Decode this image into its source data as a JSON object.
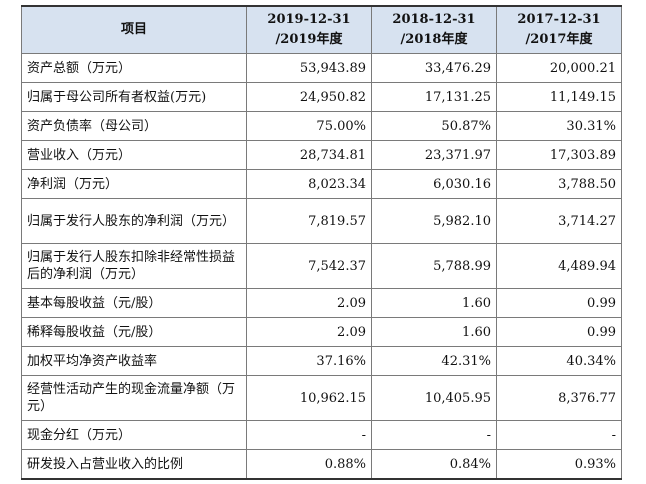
{
  "table": {
    "header": [
      "项目",
      "2019-12-31\n/2019年度",
      "2018-12-31\n/2018年度",
      "2017-12-31\n/2017年度"
    ],
    "rows": [
      {
        "label": "资产总额（万元）",
        "values": [
          "53,943.89",
          "33,476.29",
          "20,000.21"
        ]
      },
      {
        "label": "归属于母公司所有者权益(万元)",
        "values": [
          "24,950.82",
          "17,131.25",
          "11,149.15"
        ]
      },
      {
        "label": "资产负债率（母公司）",
        "values": [
          "75.00%",
          "50.87%",
          "30.31%"
        ]
      },
      {
        "label": "营业收入（万元）",
        "values": [
          "28,734.81",
          "23,371.97",
          "17,303.89"
        ]
      },
      {
        "label": "净利润（万元）",
        "values": [
          "8,023.34",
          "6,030.16",
          "3,788.50"
        ]
      },
      {
        "label": "归属于发行人股东的净利润（万元）",
        "values": [
          "7,819.57",
          "5,982.10",
          "3,714.27"
        ]
      },
      {
        "label": "归属于发行人股东扣除非经常性损益后的净利润（万元）",
        "values": [
          "7,542.37",
          "5,788.99",
          "4,489.94"
        ]
      },
      {
        "label": "基本每股收益（元/股）",
        "values": [
          "2.09",
          "1.60",
          "0.99"
        ]
      },
      {
        "label": "稀释每股收益（元/股）",
        "values": [
          "2.09",
          "1.60",
          "0.99"
        ]
      },
      {
        "label": "加权平均净资产收益率",
        "values": [
          "37.16%",
          "42.31%",
          "40.34%"
        ]
      },
      {
        "label": "经营性活动产生的现金流量净额（万元）",
        "values": [
          "10,962.15",
          "10,405.95",
          "8,376.77"
        ]
      },
      {
        "label": "现金分红（万元）",
        "values": [
          "-",
          "-",
          "-"
        ]
      },
      {
        "label": "研发投入占营业收入的比例",
        "values": [
          "0.88%",
          "0.84%",
          "0.93%"
        ]
      }
    ]
  }
}
